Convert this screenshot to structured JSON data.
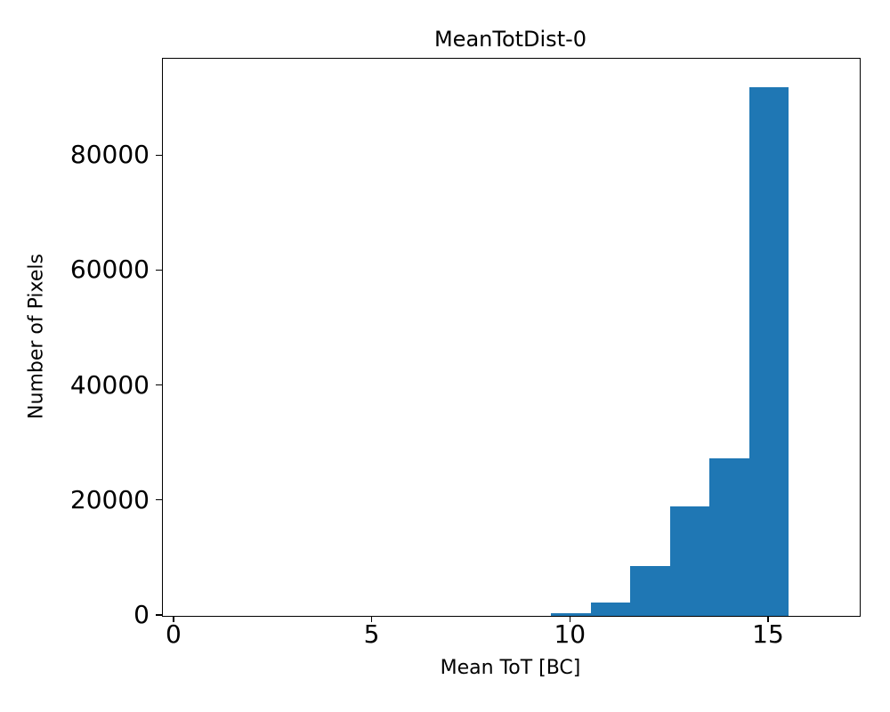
{
  "chart_data": {
    "type": "bar",
    "subtype": "histogram",
    "title": "MeanTotDist-0",
    "xlabel": "Mean ToT [BC]",
    "ylabel": "Number of Pixels",
    "bin_edges": [
      9.5,
      10.5,
      11.5,
      12.5,
      13.5,
      14.5,
      15.5
    ],
    "counts": [
      400,
      2400,
      8700,
      19000,
      27400,
      92000
    ],
    "bar_color": "#1f77b4",
    "xlim": [
      -0.29,
      17.29
    ],
    "ylim": [
      0,
      96900
    ],
    "xticks": [
      0,
      5,
      10,
      15
    ],
    "xtick_labels": [
      "0",
      "5",
      "10",
      "15"
    ],
    "yticks": [
      0,
      20000,
      40000,
      60000,
      80000
    ],
    "ytick_labels": [
      "0",
      "20000",
      "40000",
      "60000",
      "80000"
    ],
    "grid": false,
    "legend": null,
    "axis_color": "#000000",
    "background_color": "#ffffff"
  }
}
